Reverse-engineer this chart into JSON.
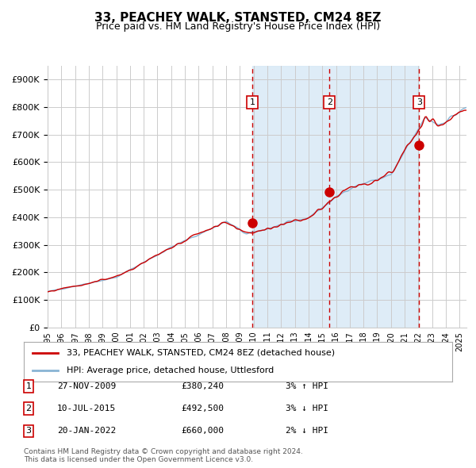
{
  "title": "33, PEACHEY WALK, STANSTED, CM24 8EZ",
  "subtitle": "Price paid vs. HM Land Registry's House Price Index (HPI)",
  "ylabel": "",
  "xlim_start": 1995.0,
  "xlim_end": 2025.5,
  "ylim_min": 0,
  "ylim_max": 950000,
  "yticks": [
    0,
    100000,
    200000,
    300000,
    400000,
    500000,
    600000,
    700000,
    800000,
    900000
  ],
  "ytick_labels": [
    "£0",
    "£100K",
    "£200K",
    "£300K",
    "£400K",
    "£500K",
    "£600K",
    "£700K",
    "£800K",
    "£900K"
  ],
  "xticks": [
    1995,
    1996,
    1997,
    1998,
    1999,
    2000,
    2001,
    2002,
    2003,
    2004,
    2005,
    2006,
    2007,
    2008,
    2009,
    2010,
    2011,
    2012,
    2013,
    2014,
    2015,
    2016,
    2017,
    2018,
    2019,
    2020,
    2021,
    2022,
    2023,
    2024,
    2025
  ],
  "sale_dates": [
    2009.9,
    2015.52,
    2022.05
  ],
  "sale_prices": [
    380240,
    492500,
    660000
  ],
  "sale_labels": [
    "1",
    "2",
    "3"
  ],
  "shade_start": 2009.9,
  "shade_end": 2022.05,
  "hpi_color": "#89b4d4",
  "price_color": "#cc0000",
  "shade_color": "#d6e8f5",
  "dashed_color": "#cc0000",
  "background_color": "#ffffff",
  "grid_color": "#cccccc",
  "legend_label_price": "33, PEACHEY WALK, STANSTED, CM24 8EZ (detached house)",
  "legend_label_hpi": "HPI: Average price, detached house, Uttlesford",
  "table_data": [
    [
      "1",
      "27-NOV-2009",
      "£380,240",
      "3% ↑ HPI"
    ],
    [
      "2",
      "10-JUL-2015",
      "£492,500",
      "3% ↓ HPI"
    ],
    [
      "3",
      "20-JAN-2022",
      "£660,000",
      "2% ↓ HPI"
    ]
  ],
  "footnote": "Contains HM Land Registry data © Crown copyright and database right 2024.\nThis data is licensed under the Open Government Licence v3.0."
}
